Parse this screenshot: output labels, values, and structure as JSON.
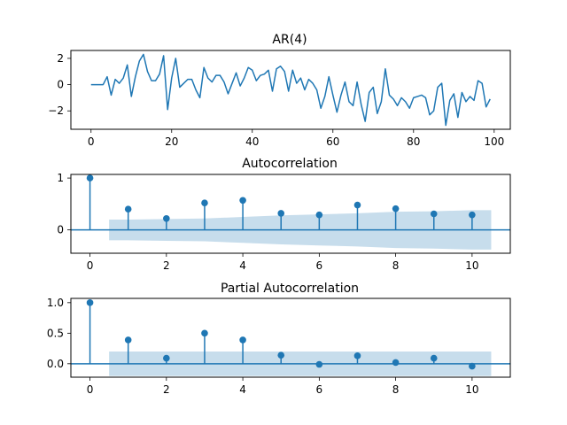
{
  "figure": {
    "accent_color": "#1f77b4",
    "band_color": "#1f77b4"
  },
  "chart_data": [
    {
      "type": "line",
      "title": "AR(4)",
      "xlabel": "",
      "ylabel": "",
      "xlim": [
        -5,
        104
      ],
      "ylim": [
        -3.4,
        2.6
      ],
      "x_ticks": [
        0,
        20,
        40,
        60,
        80,
        100
      ],
      "y_ticks": [
        2,
        0,
        -2
      ],
      "grid": false,
      "series": [
        {
          "color": "#1f77b4",
          "x": [
            0,
            1,
            2,
            3,
            4,
            5,
            6,
            7,
            8,
            9,
            10,
            11,
            12,
            13,
            14,
            15,
            16,
            17,
            18,
            19,
            20,
            21,
            22,
            23,
            24,
            25,
            26,
            27,
            28,
            29,
            30,
            31,
            32,
            33,
            34,
            35,
            36,
            37,
            38,
            39,
            40,
            41,
            42,
            43,
            44,
            45,
            46,
            47,
            48,
            49,
            50,
            51,
            52,
            53,
            54,
            55,
            56,
            57,
            58,
            59,
            60,
            61,
            62,
            63,
            64,
            65,
            66,
            67,
            68,
            69,
            70,
            71,
            72,
            73,
            74,
            75,
            76,
            77,
            78,
            79,
            80,
            81,
            82,
            83,
            84,
            85,
            86,
            87,
            88,
            89,
            90,
            91,
            92,
            93,
            94,
            95,
            96,
            97,
            98,
            99
          ],
          "values": [
            0,
            0,
            0,
            0,
            0.6,
            -0.8,
            0.4,
            0.1,
            0.5,
            1.5,
            -0.9,
            0.6,
            1.8,
            2.3,
            1.0,
            0.3,
            0.3,
            0.8,
            2.2,
            -1.9,
            0.5,
            2.0,
            -0.2,
            0.1,
            0.4,
            0.4,
            -0.4,
            -1.0,
            1.3,
            0.5,
            0.2,
            0.7,
            0.7,
            0.2,
            -0.7,
            0.1,
            0.9,
            -0.1,
            0.5,
            1.3,
            1.1,
            0.3,
            0.7,
            0.8,
            1.1,
            -0.5,
            1.2,
            1.4,
            1.0,
            -0.5,
            1.1,
            0.1,
            0.5,
            -0.4,
            0.4,
            0.1,
            -0.4,
            -1.8,
            -0.9,
            0.6,
            -0.8,
            -2.1,
            -0.8,
            0.2,
            -1.3,
            -1.6,
            0.2,
            -1.5,
            -2.8,
            -0.6,
            -0.2,
            -2.2,
            -1.3,
            1.2,
            -0.8,
            -1.1,
            -1.6,
            -1.0,
            -1.3,
            -1.8,
            -1.0,
            -0.9,
            -0.8,
            -1.0,
            -2.3,
            -2.0,
            -0.2,
            0.1,
            -3.1,
            -1.2,
            -0.7,
            -2.5,
            -0.6,
            -1.3,
            -0.9,
            -1.2,
            0.3,
            0.1,
            -1.7,
            -1.1
          ]
        }
      ]
    },
    {
      "type": "scatter",
      "title": "Autocorrelation",
      "xlabel": "",
      "ylabel": "",
      "xlim": [
        -0.5,
        11
      ],
      "ylim": [
        -0.45,
        1.07
      ],
      "x_ticks": [
        0,
        2,
        4,
        6,
        8,
        10
      ],
      "y_ticks": [
        1,
        0
      ],
      "grid": false,
      "lags": [
        0,
        1,
        2,
        3,
        4,
        5,
        6,
        7,
        8,
        9,
        10
      ],
      "values": [
        1.0,
        0.4,
        0.22,
        0.52,
        0.57,
        0.32,
        0.29,
        0.48,
        0.41,
        0.31,
        0.29
      ],
      "confidence_band": {
        "x": [
          0.5,
          1,
          2,
          3,
          4,
          5,
          6,
          7,
          8,
          9,
          10,
          10.5
        ],
        "half_width": [
          0.2,
          0.2,
          0.21,
          0.22,
          0.25,
          0.28,
          0.3,
          0.32,
          0.35,
          0.36,
          0.38,
          0.38
        ]
      }
    },
    {
      "type": "scatter",
      "title": "Partial Autocorrelation",
      "xlabel": "",
      "ylabel": "",
      "xlim": [
        -0.5,
        11
      ],
      "ylim": [
        -0.22,
        1.07
      ],
      "x_ticks": [
        0,
        2,
        4,
        6,
        8,
        10
      ],
      "y_ticks": [
        1.0,
        0.5,
        0.0
      ],
      "y_tick_labels": [
        "1.0",
        "0.5",
        "0.0"
      ],
      "grid": false,
      "lags": [
        0,
        1,
        2,
        3,
        4,
        5,
        6,
        7,
        8,
        9,
        10
      ],
      "values": [
        1.0,
        0.39,
        0.09,
        0.5,
        0.39,
        0.14,
        -0.01,
        0.13,
        0.02,
        0.09,
        -0.04
      ],
      "confidence_band": {
        "x": [
          0.5,
          10.5
        ],
        "half_width": [
          0.2,
          0.2
        ]
      }
    }
  ]
}
